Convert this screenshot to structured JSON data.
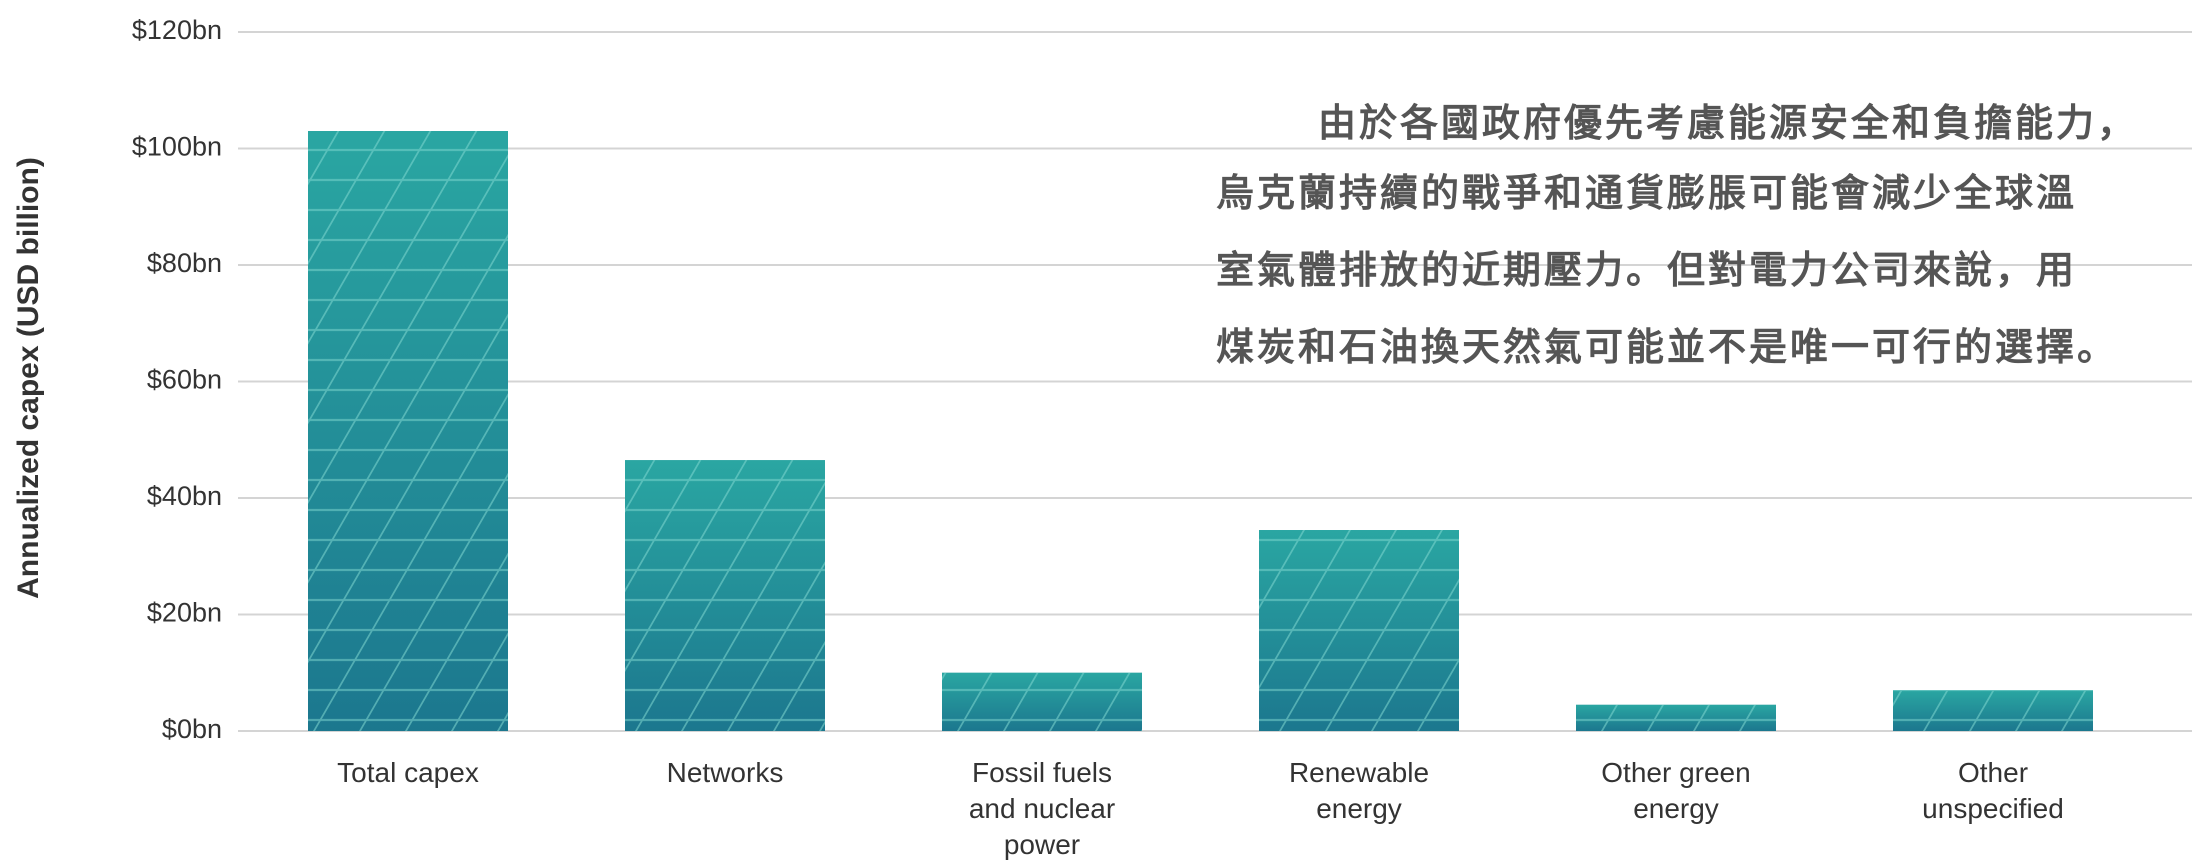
{
  "chart_data": {
    "type": "bar",
    "y_axis_label": "Annualized capex (USD billion)",
    "categories": [
      "Total capex",
      "Networks",
      "Fossil fuels and nuclear power",
      "Renewable energy",
      "Other green energy",
      "Other unspecified"
    ],
    "values": [
      103,
      46.5,
      10,
      34.5,
      4.5,
      7
    ],
    "color": "#1e8f94",
    "ylim": [
      0,
      120
    ],
    "yticks": [
      {
        "value": 0,
        "label": "$0bn"
      },
      {
        "value": 20,
        "label": "$20bn"
      },
      {
        "value": 40,
        "label": "$40bn"
      },
      {
        "value": 60,
        "label": "$60bn"
      },
      {
        "value": 80,
        "label": "$80bn"
      },
      {
        "value": 100,
        "label": "$100bn"
      },
      {
        "value": 120,
        "label": "$120bn"
      }
    ],
    "grid": true,
    "annotation": [
      "由於各國政府優先考慮能源安全和負擔能力，",
      "烏克蘭持續的戰爭和通貨膨脹可能會減少全球溫",
      "室氣體排放的近期壓力。但對電力公司來說，用",
      "煤炭和石油換天然氣可能並不是唯一可行的選擇。"
    ]
  }
}
